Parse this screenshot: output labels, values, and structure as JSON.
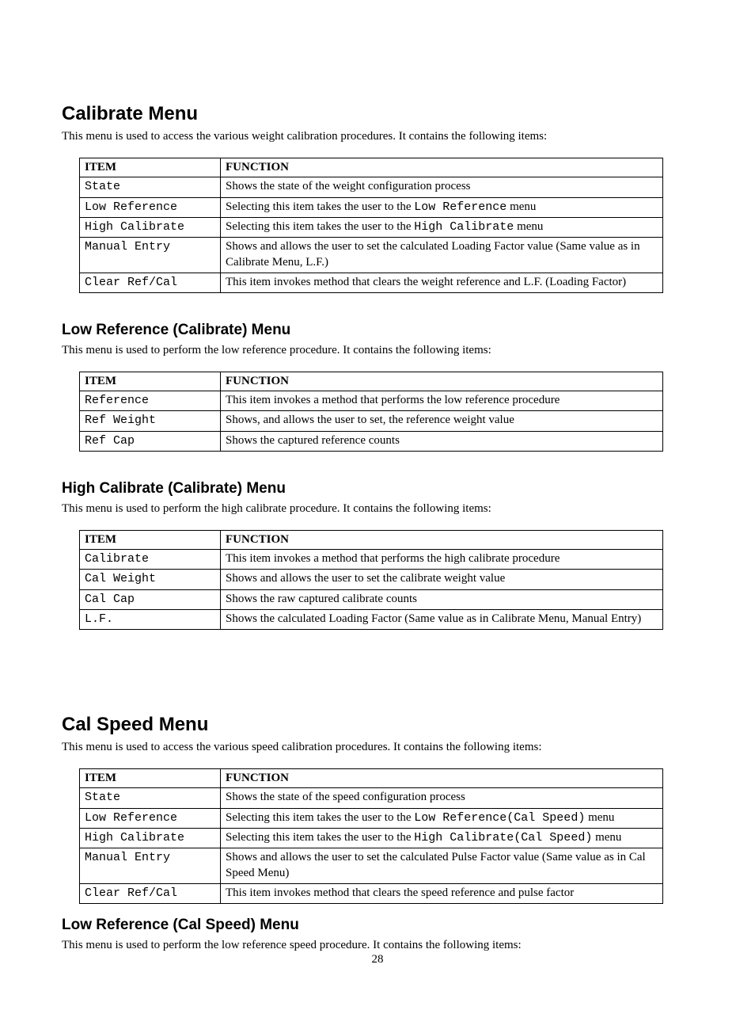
{
  "page_number": "28",
  "sections": [
    {
      "level": "h1",
      "title": "Calibrate Menu",
      "intro": "This menu is used to access the various weight calibration procedures.  It contains the following items:",
      "th_item": "ITEM",
      "th_func": "FUNCTION",
      "rows": [
        {
          "item_mono": "State",
          "func_parts": [
            {
              "t": "text",
              "v": "Shows the state of the weight configuration process"
            }
          ]
        },
        {
          "item_mono": "Low Reference",
          "func_parts": [
            {
              "t": "text",
              "v": "Selecting this item takes the user to the "
            },
            {
              "t": "mono",
              "v": "Low Reference"
            },
            {
              "t": "text",
              "v": " menu"
            }
          ]
        },
        {
          "item_mono": "High Calibrate",
          "func_parts": [
            {
              "t": "text",
              "v": "Selecting this item takes the user to the "
            },
            {
              "t": "mono",
              "v": "High Calibrate"
            },
            {
              "t": "text",
              "v": " menu"
            }
          ]
        },
        {
          "item_mono": "Manual Entry",
          "func_parts": [
            {
              "t": "text",
              "v": "Shows and allows the user to set the calculated Loading Factor value (Same value as in Calibrate Menu, L.F.)"
            }
          ]
        },
        {
          "item_mono": "Clear Ref/Cal",
          "func_parts": [
            {
              "t": "text",
              "v": "This item invokes method that clears the weight reference and L.F. (Loading Factor)"
            }
          ]
        }
      ]
    },
    {
      "level": "h2",
      "title": "Low Reference (Calibrate) Menu",
      "intro": "This menu is used to perform the low reference procedure.  It contains the following items:",
      "th_item": "ITEM",
      "th_func": "FUNCTION",
      "rows": [
        {
          "item_mono": "Reference",
          "func_parts": [
            {
              "t": "text",
              "v": "This item invokes a method that performs the low reference procedure"
            }
          ]
        },
        {
          "item_mono": "Ref Weight",
          "func_parts": [
            {
              "t": "text",
              "v": "Shows, and allows the user to set,  the reference weight value"
            }
          ]
        },
        {
          "item_mono": "Ref Cap",
          "func_parts": [
            {
              "t": "text",
              "v": "Shows the captured reference counts"
            }
          ]
        }
      ]
    },
    {
      "level": "h2",
      "title": "High Calibrate (Calibrate) Menu",
      "intro": "This menu is used to perform the high calibrate procedure.  It contains the following items:",
      "th_item": "ITEM",
      "th_func": "FUNCTION",
      "rows": [
        {
          "item_mono": "Calibrate",
          "func_parts": [
            {
              "t": "text",
              "v": "This item invokes a method that performs the high calibrate procedure"
            }
          ]
        },
        {
          "item_mono": "Cal Weight",
          "func_parts": [
            {
              "t": "text",
              "v": "Shows and allows the user to set the calibrate weight value"
            }
          ]
        },
        {
          "item_mono": "Cal Cap",
          "func_parts": [
            {
              "t": "text",
              "v": "Shows the raw captured calibrate counts"
            }
          ]
        },
        {
          "item_mono": "L.F.",
          "func_parts": [
            {
              "t": "text",
              "v": "Shows the calculated Loading Factor (Same value as in Calibrate Menu, Manual Entry)"
            }
          ]
        }
      ]
    },
    {
      "level": "h1",
      "title": "Cal Speed Menu",
      "intro": "This menu is used to access the various speed calibration procedures.  It contains the following items:",
      "th_item": "ITEM",
      "th_func": "FUNCTION",
      "rows": [
        {
          "item_mono": "State",
          "func_parts": [
            {
              "t": "text",
              "v": "Shows the state of the speed configuration process"
            }
          ]
        },
        {
          "item_mono": "Low Reference",
          "func_parts": [
            {
              "t": "text",
              "v": "Selecting this item takes the user to the "
            },
            {
              "t": "mono",
              "v": "Low Reference(Cal Speed)"
            },
            {
              "t": "text",
              "v": " menu"
            }
          ]
        },
        {
          "item_mono": "High Calibrate",
          "func_parts": [
            {
              "t": "text",
              "v": "Selecting this item takes the user to the "
            },
            {
              "t": "mono",
              "v": "High Calibrate(Cal Speed)"
            },
            {
              "t": "text",
              "v": " menu"
            }
          ]
        },
        {
          "item_mono": "Manual Entry",
          "func_parts": [
            {
              "t": "text",
              "v": "Shows and allows the user to set the calculated Pulse Factor value (Same value as in Cal Speed Menu)"
            }
          ]
        },
        {
          "item_mono": "Clear Ref/Cal",
          "func_parts": [
            {
              "t": "text",
              "v": "This item invokes method that clears the speed reference and pulse factor"
            }
          ]
        }
      ],
      "after_gap": "small"
    },
    {
      "level": "h2",
      "title": "Low Reference (Cal Speed) Menu",
      "intro": "This menu is used to perform the low reference speed procedure.  It contains the following items:",
      "th_item": "",
      "th_func": "",
      "rows": []
    }
  ]
}
